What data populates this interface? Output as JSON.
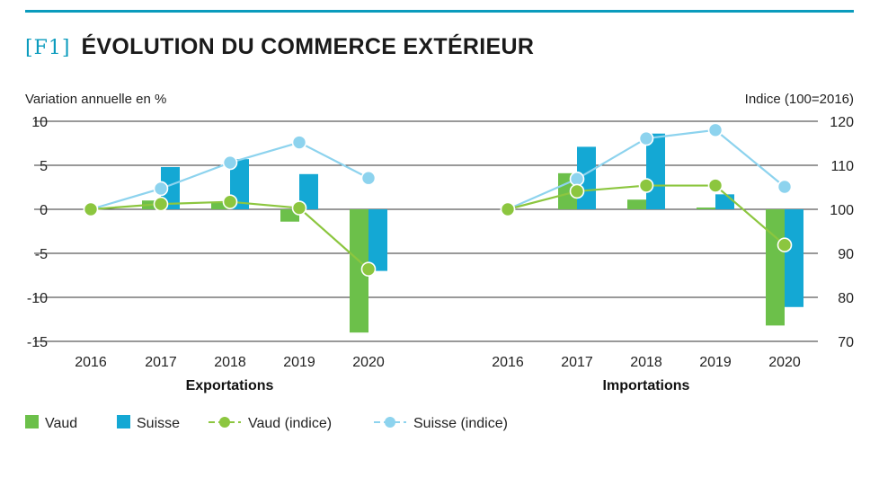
{
  "header": {
    "figure_tag": "[F1]",
    "title": "ÉVOLUTION DU COMMERCE EXTÉRIEUR"
  },
  "colors": {
    "accent": "#0a9bbd",
    "vaud": "#6cc04a",
    "suisse": "#14a8d4",
    "vaud_index": "#8cc63f",
    "suisse_index": "#8dd3ee",
    "grid": "#333333"
  },
  "chart_data": {
    "type": "bar",
    "left_axis": {
      "label": "Variation annuelle en %",
      "ticks": [
        "10",
        "5",
        "0",
        "-5",
        "-10",
        "-15"
      ],
      "range": [
        -15,
        10
      ]
    },
    "right_axis": {
      "label": "Indice (100=2016)",
      "ticks": [
        "120",
        "110",
        "100",
        "90",
        "80",
        "70"
      ],
      "range": [
        70,
        120
      ]
    },
    "panels": [
      {
        "name": "Exportations",
        "categories": [
          "2016",
          "2017",
          "2018",
          "2019",
          "2020"
        ],
        "series": [
          {
            "name": "Vaud",
            "kind": "bar",
            "axis": "left",
            "values": [
              null,
              1.0,
              0.8,
              -1.4,
              -14.0
            ]
          },
          {
            "name": "Suisse",
            "kind": "bar",
            "axis": "left",
            "values": [
              null,
              4.8,
              5.7,
              4.0,
              -7.0
            ]
          },
          {
            "name": "Vaud (indice)",
            "kind": "line",
            "axis": "right",
            "values": [
              100,
              101.2,
              101.7,
              100.3,
              86.4
            ]
          },
          {
            "name": "Suisse (indice)",
            "kind": "line",
            "axis": "right",
            "values": [
              100,
              104.7,
              110.6,
              115.2,
              107.1
            ]
          }
        ]
      },
      {
        "name": "Importations",
        "categories": [
          "2016",
          "2017",
          "2018",
          "2019",
          "2020"
        ],
        "series": [
          {
            "name": "Vaud",
            "kind": "bar",
            "axis": "left",
            "values": [
              null,
              4.1,
              1.1,
              0.2,
              -13.2
            ]
          },
          {
            "name": "Suisse",
            "kind": "bar",
            "axis": "left",
            "values": [
              null,
              7.1,
              8.6,
              1.7,
              -11.1
            ]
          },
          {
            "name": "Vaud (indice)",
            "kind": "line",
            "axis": "right",
            "values": [
              100,
              104.1,
              105.4,
              105.4,
              91.9
            ]
          },
          {
            "name": "Suisse (indice)",
            "kind": "line",
            "axis": "right",
            "values": [
              100,
              106.9,
              116.1,
              118.0,
              105.1
            ]
          }
        ]
      }
    ],
    "legend": [
      {
        "name": "Vaud",
        "kind": "bar"
      },
      {
        "name": "Suisse",
        "kind": "bar"
      },
      {
        "name": "Vaud (indice)",
        "kind": "line"
      },
      {
        "name": "Suisse (indice)",
        "kind": "line"
      }
    ]
  }
}
